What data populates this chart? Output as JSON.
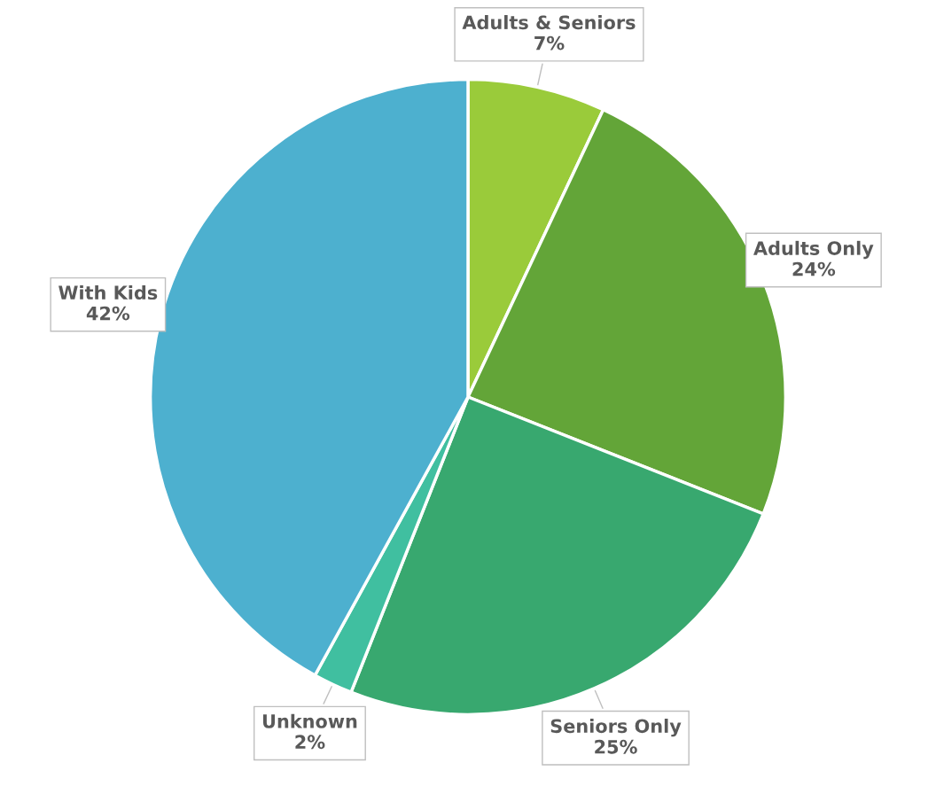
{
  "chart_data": {
    "type": "pie",
    "categories": [
      "Adults & Seniors",
      "Adults Only",
      "Seniors Only",
      "Unknown",
      "With Kids"
    ],
    "values": [
      7,
      24,
      25,
      2,
      42
    ],
    "colors": [
      "#9acb3a",
      "#63a538",
      "#38a86f",
      "#40bfa0",
      "#4db0cf"
    ],
    "value_labels": [
      "7%",
      "24%",
      "25%",
      "2%",
      "42%"
    ]
  }
}
